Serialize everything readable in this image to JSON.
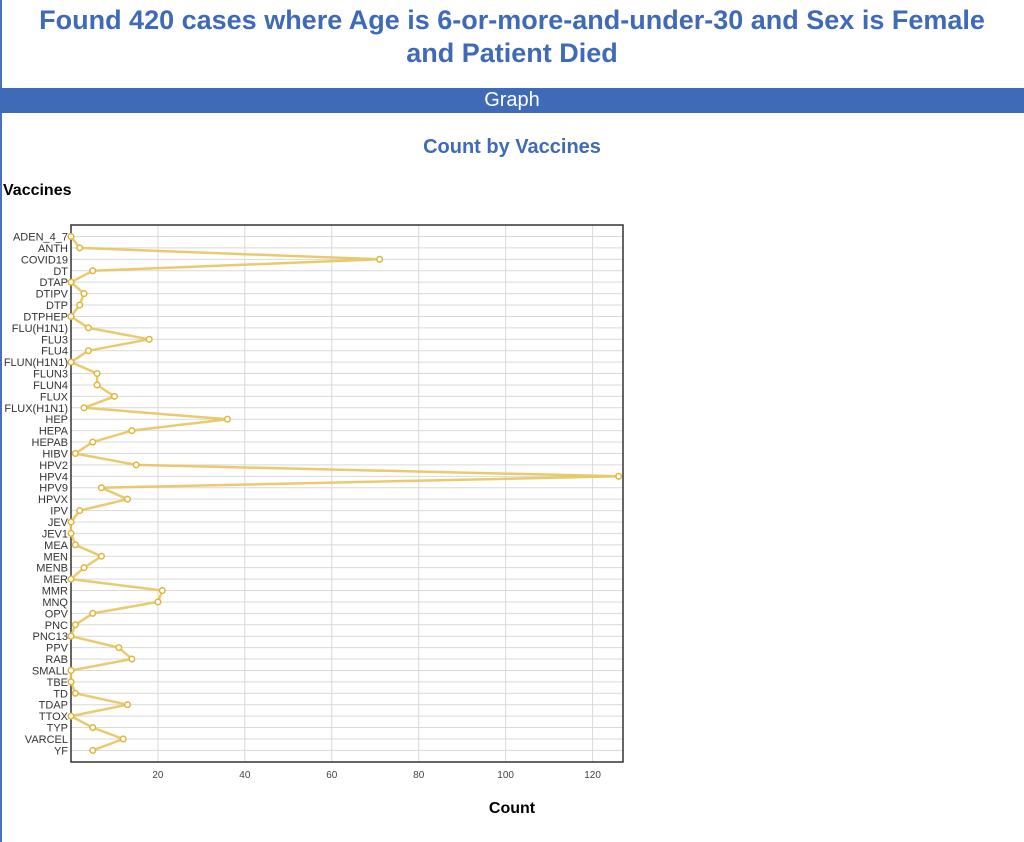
{
  "page": {
    "title_line1": "Found 420 cases where Age is 6-or-more-and-under-30 and Sex is Female",
    "title_line2": "and Patient Died",
    "section": "Graph"
  },
  "colors": {
    "accent": "#3f6ab8",
    "line": "#e7c55e",
    "point_fill": "#ffffff",
    "point_stroke": "#e0b63a",
    "grid": "#d9d9d9"
  },
  "chart_data": {
    "type": "line",
    "title": "Count by Vaccines",
    "ylabel": "Vaccines",
    "xlabel": "Count",
    "orientation": "horizontal",
    "xlim": [
      0,
      127
    ],
    "xticks": [
      20,
      40,
      60,
      80,
      100,
      120
    ],
    "grid": true,
    "categories": [
      "ADEN_4_7",
      "ANTH",
      "COVID19",
      "DT",
      "DTAP",
      "DTIPV",
      "DTP",
      "DTPHEP",
      "FLU(H1N1)",
      "FLU3",
      "FLU4",
      "FLUN(H1N1)",
      "FLUN3",
      "FLUN4",
      "FLUX",
      "FLUX(H1N1)",
      "HEP",
      "HEPA",
      "HEPAB",
      "HIBV",
      "HPV2",
      "HPV4",
      "HPV9",
      "HPVX",
      "IPV",
      "JEV",
      "JEV1",
      "MEA",
      "MEN",
      "MENB",
      "MER",
      "MMR",
      "MNQ",
      "OPV",
      "PNC",
      "PNC13",
      "PPV",
      "RAB",
      "SMALL",
      "TBE",
      "TD",
      "TDAP",
      "TTOX",
      "TYP",
      "VARCEL",
      "YF"
    ],
    "values": [
      0,
      2,
      71,
      5,
      0,
      3,
      2,
      0,
      4,
      18,
      4,
      0,
      6,
      6,
      10,
      3,
      36,
      14,
      5,
      1,
      15,
      126,
      7,
      13,
      2,
      0,
      0,
      1,
      7,
      3,
      0,
      21,
      20,
      5,
      1,
      0,
      11,
      14,
      0,
      0,
      1,
      13,
      0,
      5,
      12,
      5
    ]
  }
}
